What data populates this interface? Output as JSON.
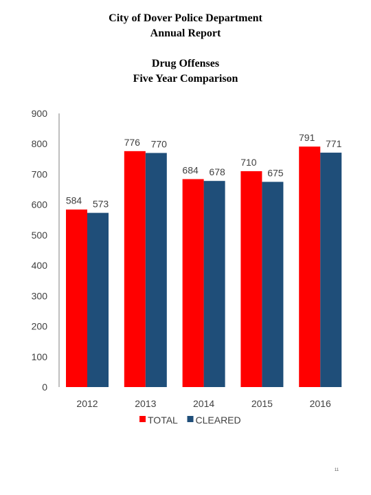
{
  "header": {
    "line1": "City of Dover Police Department",
    "line2": "Annual Report"
  },
  "page_number": "11",
  "chart_data": {
    "type": "bar",
    "title": [
      "Drug Offenses",
      "Five Year Comparison"
    ],
    "categories": [
      "2012",
      "2013",
      "2014",
      "2015",
      "2016"
    ],
    "series": [
      {
        "name": "TOTAL",
        "color": "#ff0000",
        "values": [
          584,
          776,
          684,
          710,
          791
        ]
      },
      {
        "name": "CLEARED",
        "color": "#1f4e79",
        "values": [
          573,
          770,
          678,
          675,
          771
        ]
      }
    ],
    "ylim": [
      0,
      900
    ],
    "yticks": [
      0,
      100,
      200,
      300,
      400,
      500,
      600,
      700,
      800,
      900
    ],
    "data_labels": true,
    "grid": false,
    "legend": "bottom"
  }
}
